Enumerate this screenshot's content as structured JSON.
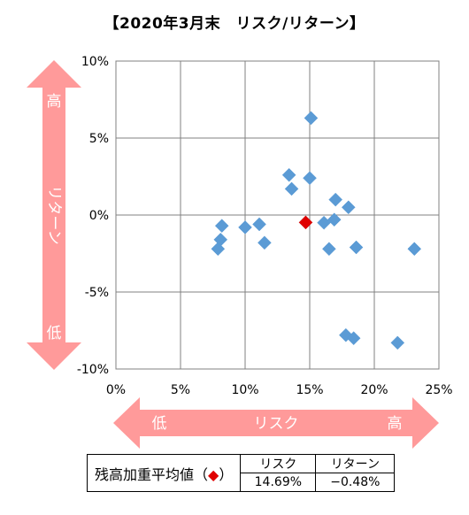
{
  "title": "【2020年3月末　リスク/リターン】",
  "y_arrow": {
    "top_label": "高",
    "middle_label": "リターン",
    "bottom_label": "低",
    "color": "#ff9a9a"
  },
  "x_arrow": {
    "left_label": "低",
    "middle_label": "リスク",
    "right_label": "高",
    "color": "#ff9a9a"
  },
  "summary_table": {
    "row_label_prefix": "残高加重平均値（",
    "row_label_marker": "◆",
    "row_label_suffix": "）",
    "col_risk": "リスク",
    "col_return": "リターン",
    "risk_value": "14.69%",
    "return_value": "−0.48%"
  },
  "chart_data": {
    "type": "scatter",
    "title": "【2020年3月末　リスク/リターン】",
    "xlabel": "リスク",
    "ylabel": "リターン",
    "xlim": [
      0,
      25
    ],
    "ylim": [
      -10,
      10
    ],
    "x_ticks": [
      "0%",
      "5%",
      "10%",
      "15%",
      "20%",
      "25%"
    ],
    "y_ticks": [
      "10%",
      "5%",
      "0%",
      "-5%",
      "-10%"
    ],
    "grid": true,
    "series": [
      {
        "color": "#5b9bd5",
        "marker": "diamond",
        "points": [
          {
            "x": 7.9,
            "y": -2.2
          },
          {
            "x": 8.1,
            "y": -1.6
          },
          {
            "x": 8.2,
            "y": -0.7
          },
          {
            "x": 10.0,
            "y": -0.8
          },
          {
            "x": 11.1,
            "y": -0.6
          },
          {
            "x": 11.5,
            "y": -1.8
          },
          {
            "x": 13.4,
            "y": 2.6
          },
          {
            "x": 13.6,
            "y": 1.7
          },
          {
            "x": 15.0,
            "y": 2.4
          },
          {
            "x": 15.1,
            "y": 6.3
          },
          {
            "x": 16.1,
            "y": -0.5
          },
          {
            "x": 16.5,
            "y": -2.2
          },
          {
            "x": 16.9,
            "y": -0.3
          },
          {
            "x": 17.0,
            "y": 1.0
          },
          {
            "x": 17.8,
            "y": -7.8
          },
          {
            "x": 18.0,
            "y": 0.5
          },
          {
            "x": 18.4,
            "y": -8.0
          },
          {
            "x": 18.6,
            "y": -2.1
          },
          {
            "x": 21.8,
            "y": -8.3
          },
          {
            "x": 23.1,
            "y": -2.2
          }
        ]
      },
      {
        "color": "#e00000",
        "marker": "diamond",
        "points": [
          {
            "x": 14.69,
            "y": -0.48
          }
        ]
      }
    ]
  }
}
